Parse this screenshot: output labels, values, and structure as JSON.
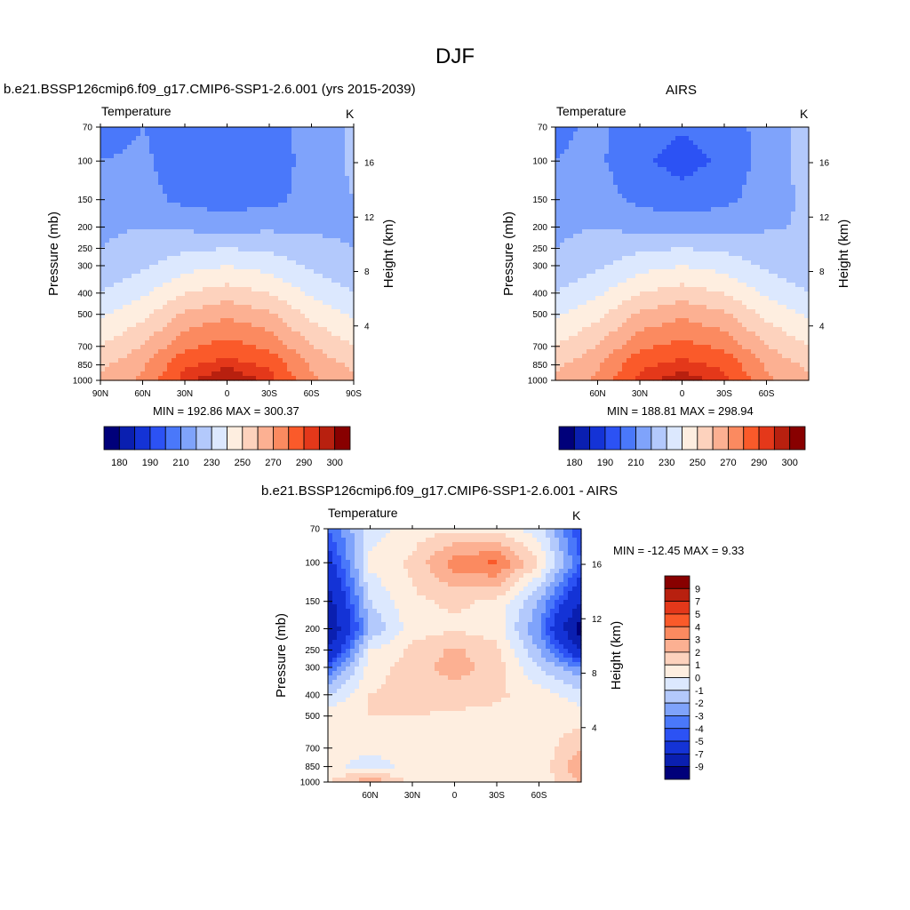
{
  "page": {
    "title": "DJF"
  },
  "chart_data": [
    {
      "type": "contour",
      "title": "b.e21.BSSP126cmip6.f09_g17.CMIP6-SSP1-2.6.001 (yrs 2015-2039)",
      "left_string": "Temperature",
      "right_string": "K",
      "ylabel": "Pressure (mb)",
      "ylabel_right": "Height (km)",
      "xticks": [
        "90N",
        "60N",
        "30N",
        "0",
        "30S",
        "60S",
        "90S"
      ],
      "yticks": [
        "70",
        "100",
        "150",
        "200",
        "250",
        "300",
        "400",
        "500",
        "700",
        "850",
        "1000"
      ],
      "yticks_right": [
        "16",
        "12",
        "8",
        "4"
      ],
      "stats": "MIN = 192.86  MAX = 300.37",
      "colorbar_levels": [
        "180",
        "190",
        "210",
        "230",
        "250",
        "270",
        "290",
        "300"
      ],
      "colors": [
        "#00007a",
        "#0a1fb0",
        "#1433d6",
        "#2c52f4",
        "#4a78fa",
        "#7fa3fb",
        "#b3c9fc",
        "#dce8fe",
        "#feeee0",
        "#fdd2bd",
        "#fcb092",
        "#fb8a60",
        "#fa5a2a",
        "#e4381a",
        "#b8200f",
        "#880000"
      ],
      "x": [
        -90,
        -60,
        -30,
        0,
        30,
        60,
        90
      ],
      "y": [
        70,
        100,
        150,
        200,
        250,
        300,
        400,
        500,
        700,
        850,
        1000
      ],
      "values": [
        [
          205,
          210,
          206,
          200,
          206,
          214,
          222
        ],
        [
          210,
          212,
          204,
          200,
          204,
          214,
          222
        ],
        [
          214,
          214,
          207,
          205,
          207,
          214,
          220
        ],
        [
          218,
          220,
          218,
          217,
          218,
          218,
          218
        ],
        [
          220,
          224,
          228,
          230,
          228,
          224,
          220
        ],
        [
          222,
          228,
          236,
          240,
          236,
          228,
          222
        ],
        [
          230,
          238,
          250,
          255,
          250,
          238,
          230
        ],
        [
          238,
          247,
          262,
          268,
          262,
          247,
          238
        ],
        [
          250,
          260,
          278,
          284,
          278,
          260,
          250
        ],
        [
          258,
          268,
          288,
          294,
          288,
          268,
          258
        ],
        [
          262,
          272,
          294,
          300,
          294,
          272,
          262
        ]
      ]
    },
    {
      "type": "contour",
      "title": "AIRS",
      "left_string": "Temperature",
      "right_string": "K",
      "ylabel": "Pressure (mb)",
      "ylabel_right": "Height (km)",
      "xticks": [
        "60N",
        "30N",
        "0",
        "30S",
        "60S"
      ],
      "yticks": [
        "70",
        "100",
        "150",
        "200",
        "250",
        "300",
        "400",
        "500",
        "700",
        "850",
        "1000"
      ],
      "yticks_right": [
        "16",
        "12",
        "8",
        "4"
      ],
      "stats": "MIN = 188.81  MAX = 298.94",
      "colorbar_levels": [
        "180",
        "190",
        "210",
        "230",
        "250",
        "270",
        "290",
        "300"
      ],
      "colors": [
        "#00007a",
        "#0a1fb0",
        "#1433d6",
        "#2c52f4",
        "#4a78fa",
        "#7fa3fb",
        "#b3c9fc",
        "#dce8fe",
        "#feeee0",
        "#fdd2bd",
        "#fcb092",
        "#fb8a60",
        "#fa5a2a",
        "#e4381a",
        "#b8200f",
        "#880000"
      ],
      "x": [
        -90,
        -60,
        -30,
        0,
        30,
        60,
        90
      ],
      "y": [
        70,
        100,
        150,
        200,
        250,
        300,
        400,
        500,
        700,
        850,
        1000
      ],
      "values": [
        [
          208,
          212,
          205,
          201,
          205,
          214,
          224
        ],
        [
          210,
          212,
          202,
          196,
          202,
          214,
          224
        ],
        [
          214,
          215,
          207,
          205,
          207,
          216,
          222
        ],
        [
          218,
          220,
          217,
          216,
          217,
          219,
          221
        ],
        [
          220,
          224,
          228,
          230,
          228,
          224,
          221
        ],
        [
          222,
          228,
          236,
          240,
          236,
          228,
          222
        ],
        [
          230,
          238,
          250,
          255,
          250,
          238,
          230
        ],
        [
          238,
          247,
          262,
          268,
          262,
          247,
          238
        ],
        [
          250,
          260,
          278,
          283,
          278,
          260,
          250
        ],
        [
          258,
          268,
          288,
          293,
          288,
          268,
          258
        ],
        [
          262,
          272,
          293,
          298,
          293,
          272,
          262
        ]
      ]
    },
    {
      "type": "contour",
      "title": "b.e21.BSSP126cmip6.f09_g17.CMIP6-SSP1-2.6.001 - AIRS",
      "left_string": "Temperature",
      "right_string": "K",
      "ylabel": "Pressure (mb)",
      "ylabel_right": "Height (km)",
      "xticks": [
        "60N",
        "30N",
        "0",
        "30S",
        "60S"
      ],
      "yticks": [
        "70",
        "100",
        "150",
        "200",
        "250",
        "300",
        "400",
        "500",
        "700",
        "850",
        "1000"
      ],
      "yticks_right": [
        "16",
        "12",
        "8",
        "4"
      ],
      "stats": "MIN = -12.45  MAX =   9.33",
      "colorbar_levels": [
        "9",
        "7",
        "5",
        "4",
        "3",
        "2",
        "1",
        "0",
        "-1",
        "-2",
        "-3",
        "-4",
        "-5",
        "-7",
        "-9"
      ],
      "colors": [
        "#880000",
        "#b8200f",
        "#e4381a",
        "#fa5a2a",
        "#fb8a60",
        "#fcb092",
        "#fdd2bd",
        "#feeee0",
        "#dce8fe",
        "#b3c9fc",
        "#7fa3fb",
        "#4a78fa",
        "#2c52f4",
        "#1433d6",
        "#0a1fb0",
        "#00007a"
      ],
      "x": [
        -90,
        -60,
        -30,
        0,
        30,
        60,
        90
      ],
      "y": [
        70,
        100,
        150,
        200,
        250,
        300,
        400,
        500,
        700,
        850,
        1000
      ],
      "values": [
        [
          -4,
          -0.5,
          0.5,
          0.8,
          0.6,
          -0.5,
          -5
        ],
        [
          -6,
          0.3,
          1.2,
          3.5,
          4.2,
          1,
          -4
        ],
        [
          -8,
          -1,
          0.8,
          1.2,
          0.8,
          -2,
          -7
        ],
        [
          -9,
          -2,
          0.6,
          0.8,
          0.6,
          -3,
          -10
        ],
        [
          -7,
          0,
          1.2,
          2.2,
          1.2,
          -2,
          -7
        ],
        [
          -4,
          0.5,
          1.5,
          2.5,
          1.5,
          -1,
          -3
        ],
        [
          -1,
          1,
          1.5,
          1.5,
          1.2,
          0.5,
          -0.5
        ],
        [
          0.5,
          1,
          1,
          0.8,
          0.7,
          0.5,
          0.5
        ],
        [
          0.5,
          0.3,
          0.3,
          0.4,
          0.4,
          0.3,
          2
        ],
        [
          0.3,
          -0.5,
          0.3,
          0.4,
          0.3,
          0.2,
          3
        ],
        [
          1,
          3,
          0.5,
          0.4,
          0.5,
          0.3,
          2
        ]
      ]
    }
  ]
}
